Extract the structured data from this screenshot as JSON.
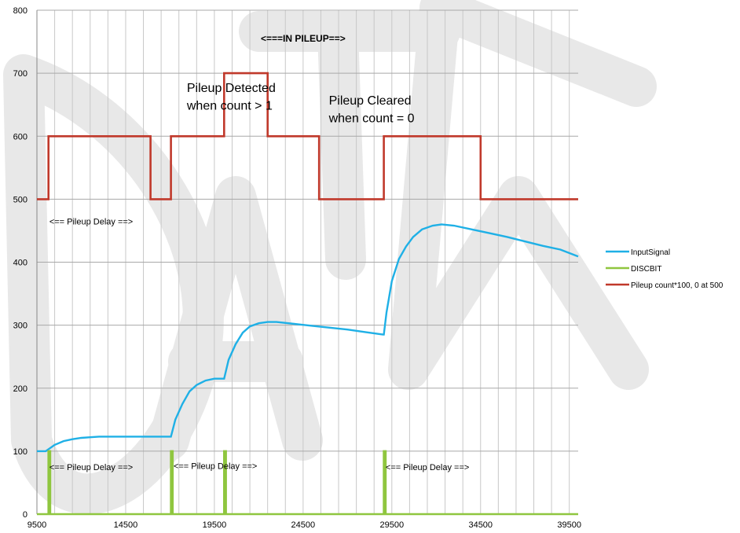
{
  "chart_data": {
    "type": "line",
    "xlim": [
      9500,
      40000
    ],
    "ylim": [
      0,
      800
    ],
    "x_ticks": [
      "9500",
      "14500",
      "19500",
      "24500",
      "29500",
      "34500",
      "39500"
    ],
    "y_ticks": [
      "0",
      "100",
      "200",
      "300",
      "400",
      "500",
      "600",
      "700",
      "800"
    ],
    "grid": true,
    "legend_position": "right",
    "series": [
      {
        "name": "InputSignal",
        "color": "#1fb0e6",
        "points": [
          [
            9500,
            100
          ],
          [
            10000,
            100
          ],
          [
            10200,
            104
          ],
          [
            10500,
            110
          ],
          [
            11000,
            116
          ],
          [
            11500,
            119
          ],
          [
            12000,
            121
          ],
          [
            12500,
            122
          ],
          [
            13000,
            123
          ],
          [
            13500,
            123
          ],
          [
            14000,
            123
          ],
          [
            15000,
            123
          ],
          [
            16000,
            123
          ],
          [
            17000,
            123
          ],
          [
            17050,
            123
          ],
          [
            17300,
            150
          ],
          [
            17700,
            175
          ],
          [
            18100,
            195
          ],
          [
            18500,
            205
          ],
          [
            19000,
            212
          ],
          [
            19500,
            215
          ],
          [
            20000,
            215
          ],
          [
            20050,
            215
          ],
          [
            20300,
            245
          ],
          [
            20700,
            270
          ],
          [
            21100,
            288
          ],
          [
            21500,
            298
          ],
          [
            22000,
            303
          ],
          [
            22500,
            305
          ],
          [
            23000,
            305
          ],
          [
            24000,
            302
          ],
          [
            25000,
            299
          ],
          [
            26000,
            296
          ],
          [
            27000,
            293
          ],
          [
            28000,
            289
          ],
          [
            29000,
            285
          ],
          [
            29050,
            285
          ],
          [
            29200,
            320
          ],
          [
            29500,
            370
          ],
          [
            29900,
            405
          ],
          [
            30300,
            425
          ],
          [
            30700,
            440
          ],
          [
            31200,
            452
          ],
          [
            31800,
            458
          ],
          [
            32300,
            460
          ],
          [
            33000,
            458
          ],
          [
            34000,
            452
          ],
          [
            35000,
            446
          ],
          [
            36000,
            440
          ],
          [
            37000,
            433
          ],
          [
            38000,
            426
          ],
          [
            39000,
            420
          ],
          [
            40000,
            409
          ]
        ]
      },
      {
        "name": "DISCBIT",
        "color": "#8fc63f",
        "points": [
          [
            9500,
            0
          ],
          [
            10150,
            0
          ],
          [
            10150,
            100
          ],
          [
            10250,
            100
          ],
          [
            10250,
            0
          ],
          [
            17050,
            0
          ],
          [
            17050,
            100
          ],
          [
            17150,
            100
          ],
          [
            17150,
            0
          ],
          [
            20050,
            0
          ],
          [
            20050,
            100
          ],
          [
            20150,
            100
          ],
          [
            20150,
            0
          ],
          [
            29050,
            0
          ],
          [
            29050,
            100
          ],
          [
            29150,
            100
          ],
          [
            29150,
            0
          ],
          [
            40000,
            0
          ]
        ]
      },
      {
        "name": "Pileup count*100,  0 at 500",
        "color": "#c0392b",
        "points": [
          [
            9500,
            500
          ],
          [
            10150,
            500
          ],
          [
            10150,
            600
          ],
          [
            15900,
            600
          ],
          [
            15900,
            500
          ],
          [
            17050,
            500
          ],
          [
            17050,
            600
          ],
          [
            20050,
            600
          ],
          [
            20050,
            700
          ],
          [
            22500,
            700
          ],
          [
            22500,
            600
          ],
          [
            25400,
            600
          ],
          [
            25400,
            500
          ],
          [
            29050,
            500
          ],
          [
            29050,
            600
          ],
          [
            34500,
            600
          ],
          [
            34500,
            500
          ],
          [
            40000,
            500
          ]
        ]
      }
    ],
    "annotations": [
      {
        "text": "<===IN PILEUP==>",
        "x": 24500,
        "y": 750,
        "style": "bold",
        "anchor": "middle"
      },
      {
        "text": "Pileup Detected",
        "x": 17950,
        "y": 670,
        "style": "big",
        "anchor": "start"
      },
      {
        "text": "when count > 1",
        "x": 17950,
        "y": 642,
        "style": "big",
        "anchor": "start"
      },
      {
        "text": "Pileup Cleared",
        "x": 25950,
        "y": 650,
        "style": "big",
        "anchor": "start"
      },
      {
        "text": "when count = 0",
        "x": 25950,
        "y": 622,
        "style": "big",
        "anchor": "start"
      },
      {
        "text": "<== Pileup Delay ==>",
        "x": 10200,
        "y": 460,
        "style": "small",
        "anchor": "start"
      },
      {
        "text": "<== Pileup Delay ==>",
        "x": 10200,
        "y": 70,
        "style": "small",
        "anchor": "start"
      },
      {
        "text": "<== Pileup Delay ==>",
        "x": 17200,
        "y": 72,
        "style": "small",
        "anchor": "start"
      },
      {
        "text": "<== Pileup Delay ==>",
        "x": 29150,
        "y": 70,
        "style": "small",
        "anchor": "start"
      }
    ]
  }
}
